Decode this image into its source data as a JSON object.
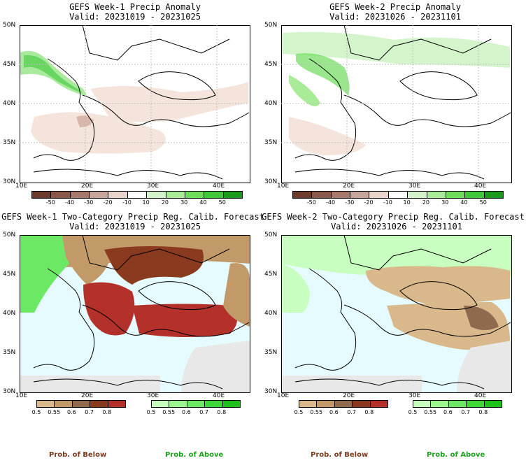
{
  "panels": [
    {
      "title": "GEFS Week-1 Precip Anomaly",
      "valid": "Valid: 20231019 - 20231025"
    },
    {
      "title": "GEFS Week-2 Precip Anomaly",
      "valid": "Valid: 20231026 - 20231101"
    },
    {
      "title": "GEFS Week-1 Two-Category Precip Reg. Calib. Forecast",
      "valid": "Valid: 20231019 - 20231025"
    },
    {
      "title": "GEFS Week-2 Two-Category Precip Reg. Calib. Forecast",
      "valid": "Valid: 20231026 - 20231101"
    }
  ],
  "lat_labels": [
    "50N",
    "45N",
    "40N",
    "35N",
    "30N"
  ],
  "lon_labels": [
    "10E",
    "20E",
    "30E",
    "40E"
  ],
  "anomaly_colorbar": {
    "ticks": [
      "-50",
      "-40",
      "-30",
      "-20",
      "-10",
      "10",
      "20",
      "30",
      "40",
      "50"
    ],
    "colors": [
      "#6e3b2b",
      "#8a5748",
      "#a8786b",
      "#c8a59a",
      "#e8d4cc",
      "#ffffff",
      "#d4f5cc",
      "#a8ec98",
      "#6fdc5c",
      "#3fc83a",
      "#1a9a1a"
    ]
  },
  "below_colorbar": {
    "ticks": [
      "0.5",
      "0.55",
      "0.6",
      "0.7",
      "0.8"
    ],
    "colors": [
      "#d9b98c",
      "#c29a6a",
      "#8f6a4e",
      "#8a3a1e",
      "#b3312a"
    ]
  },
  "above_colorbar": {
    "ticks": [
      "0.5",
      "0.55",
      "0.6",
      "0.7",
      "0.8"
    ],
    "colors": [
      "#c8ffc0",
      "#9cf58f",
      "#6de865",
      "#3fd63a",
      "#1ec21a"
    ]
  },
  "prob_labels": {
    "below": "Prob. of Below",
    "above": "Prob. of Above"
  },
  "colors": {
    "below_text": "#7a3a1e",
    "above_text": "#1fa21f",
    "sea": "#e6fbff",
    "land_na": "#e8e8e8"
  }
}
